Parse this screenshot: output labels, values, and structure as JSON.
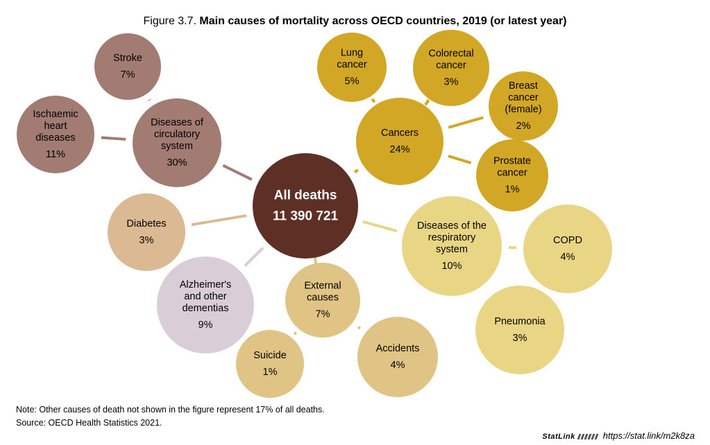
{
  "title": {
    "prefix": "Figure 3.7.",
    "main": "Main causes of mortality across OECD countries, 2019 (or latest year)"
  },
  "colors": {
    "root": "#5e2f24",
    "circulatory": "#a27b72",
    "cancers": "#d3a726",
    "respiratory": "#e9d685",
    "external": "#e0c485",
    "diabetes": "#dbb993",
    "alzheimers": "#d9cdd8"
  },
  "chart_data": {
    "type": "bubble-diagram",
    "root": {
      "label": "All deaths",
      "value": "11 390 721"
    },
    "groups": [
      {
        "label": "Diseases of circulatory system",
        "value": "30%",
        "children": [
          {
            "label": "Stroke",
            "value": "7%"
          },
          {
            "label": "Ischaemic heart diseases",
            "value": "11%"
          }
        ]
      },
      {
        "label": "Cancers",
        "value": "24%",
        "children": [
          {
            "label": "Lung cancer",
            "value": "5%"
          },
          {
            "label": "Colorectal cancer",
            "value": "3%"
          },
          {
            "label": "Breast cancer (female)",
            "value": "2%"
          },
          {
            "label": "Prostate cancer",
            "value": "1%"
          }
        ]
      },
      {
        "label": "Diseases of the respiratory system",
        "value": "10%",
        "children": [
          {
            "label": "COPD",
            "value": "4%"
          },
          {
            "label": "Pneumonia",
            "value": "3%"
          }
        ]
      },
      {
        "label": "External causes",
        "value": "7%",
        "children": [
          {
            "label": "Suicide",
            "value": "1%"
          },
          {
            "label": "Accidents",
            "value": "4%"
          }
        ]
      },
      {
        "label": "Diabetes",
        "value": "3%",
        "children": []
      },
      {
        "label": "Alzheimer's and other dementias",
        "value": "9%",
        "children": []
      }
    ]
  },
  "nodes": {
    "root": {
      "lines": [
        "All deaths",
        "11 390 721"
      ],
      "color": "root"
    },
    "circulatory": {
      "lines": [
        "Diseases of",
        "circulatory",
        "system",
        "30%"
      ],
      "color": "circulatory"
    },
    "stroke": {
      "lines": [
        "Stroke",
        "7%"
      ],
      "color": "circulatory"
    },
    "ischaemic": {
      "lines": [
        "Ischaemic",
        "heart",
        "diseases",
        "11%"
      ],
      "color": "circulatory"
    },
    "cancers": {
      "lines": [
        "Cancers",
        "24%"
      ],
      "color": "cancers"
    },
    "lung": {
      "lines": [
        "Lung",
        "cancer",
        "5%"
      ],
      "color": "cancers"
    },
    "colorectal": {
      "lines": [
        "Colorectal",
        "cancer",
        "3%"
      ],
      "color": "cancers"
    },
    "breast": {
      "lines": [
        "Breast",
        "cancer",
        "(female)",
        "2%"
      ],
      "color": "cancers"
    },
    "prostate": {
      "lines": [
        "Prostate",
        "cancer",
        "1%"
      ],
      "color": "cancers"
    },
    "respiratory": {
      "lines": [
        "Diseases of the",
        "respiratory",
        "system",
        "10%"
      ],
      "color": "respiratory"
    },
    "copd": {
      "lines": [
        "COPD",
        "4%"
      ],
      "color": "respiratory"
    },
    "pneumonia": {
      "lines": [
        "Pneumonia",
        "3%"
      ],
      "color": "respiratory"
    },
    "external": {
      "lines": [
        "External",
        "causes",
        "7%"
      ],
      "color": "external"
    },
    "suicide": {
      "lines": [
        "Suicide",
        "1%"
      ],
      "color": "external"
    },
    "accidents": {
      "lines": [
        "Accidents",
        "4%"
      ],
      "color": "external"
    },
    "diabetes": {
      "lines": [
        "Diabetes",
        "3%"
      ],
      "color": "diabetes"
    },
    "alzheimers": {
      "lines": [
        "Alzheimer's",
        "and other",
        "dementias",
        "9%"
      ],
      "color": "alzheimers"
    }
  },
  "notes": {
    "note": "Note: Other causes of death not shown in the figure represent 17% of all deaths.",
    "source": "Source: OECD Health Statistics 2021."
  },
  "statlink": {
    "brand": "StatLink",
    "url": "https://stat.link/m2k8za"
  }
}
